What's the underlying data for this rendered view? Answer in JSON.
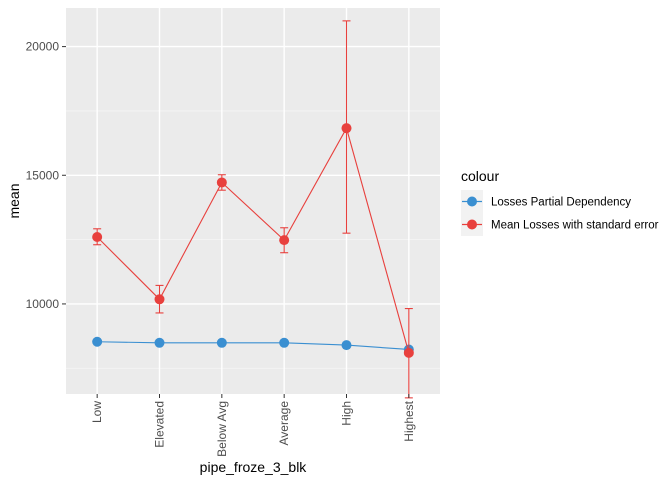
{
  "chart_data": {
    "type": "line",
    "xlabel": "pipe_froze_3_blk",
    "ylabel": "mean",
    "categories": [
      "Low",
      "Elevated",
      "Below Avg",
      "Average",
      "High",
      "Highest"
    ],
    "ylim": [
      6500,
      21500
    ],
    "yticks": [
      10000,
      15000,
      20000
    ],
    "grid": true,
    "legend": {
      "title": "colour",
      "placement": "right"
    },
    "series": [
      {
        "name": "Losses Partial Dependency",
        "color": "#3A8FD1",
        "values": [
          8530,
          8490,
          8490,
          8490,
          8400,
          8230
        ]
      },
      {
        "name": "Mean Losses with standard error",
        "color": "#E8403D",
        "values": [
          12600,
          10180,
          14720,
          12480,
          16830,
          8100
        ],
        "error_low": [
          12300,
          9650,
          14420,
          11990,
          12750,
          6350
        ],
        "error_high": [
          12920,
          10720,
          15020,
          12960,
          21000,
          9820
        ]
      }
    ]
  }
}
